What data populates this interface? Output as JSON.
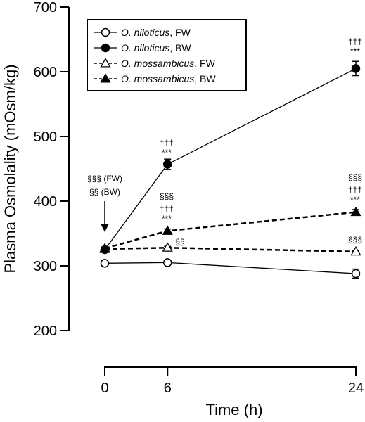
{
  "chart_data": {
    "type": "line",
    "title": "",
    "xlabel": "Time (h)",
    "ylabel": "Plasma Osmolality (mOsm/kg)",
    "ylim": [
      200,
      700
    ],
    "yticks": [
      200,
      300,
      400,
      500,
      600,
      700
    ],
    "xlim": [
      0,
      24
    ],
    "xticks": [
      0,
      6,
      24
    ],
    "x": [
      0,
      6,
      24
    ],
    "grid": false,
    "legend_position": "top-left",
    "series": [
      {
        "name_species": "O. niloticus",
        "name_suffix": ", FW",
        "marker": "circle-open",
        "line": "solid",
        "values": [
          304,
          305,
          288
        ],
        "error": [
          4,
          3,
          7
        ]
      },
      {
        "name_species": "O. niloticus",
        "name_suffix": ", BW",
        "marker": "circle-filled",
        "line": "solid",
        "values": [
          325,
          457,
          605
        ],
        "error": [
          3,
          8,
          11
        ]
      },
      {
        "name_species": "O. mossambicus",
        "name_suffix": ", FW",
        "marker": "triangle-open",
        "line": "dashed",
        "values": [
          326,
          328,
          322
        ],
        "error": [
          2,
          2,
          2
        ]
      },
      {
        "name_species": "O. mossambicus",
        "name_suffix": ", BW",
        "marker": "triangle-filled",
        "line": "dashed",
        "values": [
          327,
          354,
          383
        ],
        "error": [
          2,
          3,
          4
        ]
      }
    ],
    "annotations": {
      "arrow_line1": "§§§ (FW)",
      "arrow_line2": "§§ (BW)",
      "t6_bw_nil_dagger": "†††",
      "t6_bw_nil_star": "***",
      "t6_bw_mos_section": "§§§",
      "t6_bw_mos_dagger": "†††",
      "t6_bw_mos_star": "***",
      "t6_fw_mos_section": "§§",
      "t24_bw_nil_dagger": "†††",
      "t24_bw_nil_star": "***",
      "t24_bw_mos_section": "§§§",
      "t24_bw_mos_dagger": "†††",
      "t24_bw_mos_star": "***",
      "t24_fw_mos_section": "§§§"
    }
  }
}
